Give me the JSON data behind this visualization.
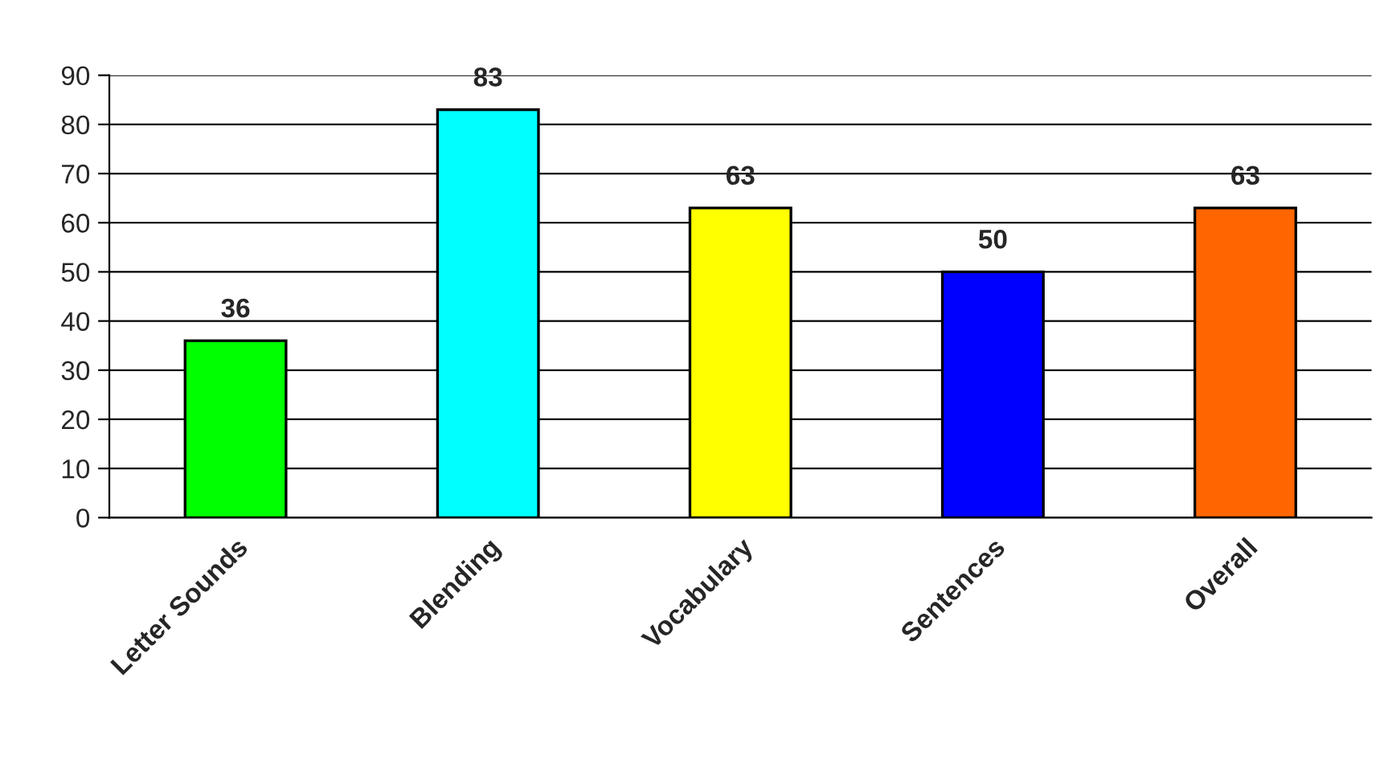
{
  "chart_data": {
    "type": "bar",
    "categories": [
      "Letter Sounds",
      "Blending",
      "Vocabulary",
      "Sentences",
      "Overall"
    ],
    "values": [
      36,
      83,
      63,
      50,
      63
    ],
    "colors": [
      "#00ff00",
      "#00ffff",
      "#ffff00",
      "#0000ff",
      "#ff6600"
    ],
    "ylim": [
      0,
      90
    ],
    "yticks": [
      0,
      10,
      20,
      30,
      40,
      50,
      60,
      70,
      80,
      90
    ],
    "grid": "y",
    "data_labels": true,
    "legend": false
  }
}
